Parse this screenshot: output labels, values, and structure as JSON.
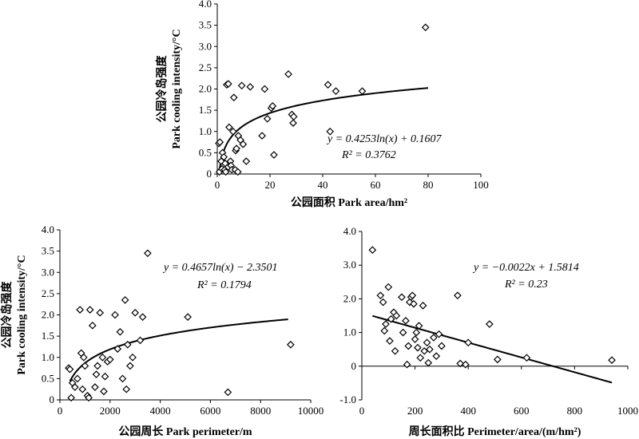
{
  "chart_data": [
    {
      "id": "area",
      "type": "scatter",
      "xlabel": "公园面积 Park area/hm²",
      "ylabel_cn": "公园冷岛强度",
      "ylabel_en": "Park cooling intensity/°C",
      "xlim": [
        0,
        100
      ],
      "ylim": [
        0,
        4
      ],
      "xticks": [
        "0",
        "20",
        "40",
        "60",
        "80",
        "100"
      ],
      "yticks": [
        "0",
        "0.5",
        "1.0",
        "1.5",
        "2.0",
        "2.5",
        "3.0",
        "3.5",
        "4.0"
      ],
      "equation": "y = 0.4253ln(x) + 0.1607",
      "r2": "R² = 0.3762",
      "fit": {
        "kind": "log",
        "a": 0.4253,
        "b": 0.1607,
        "xmin": 0.3,
        "xmax": 80
      },
      "points": [
        [
          0.6,
          0.72
        ],
        [
          1.0,
          0.75
        ],
        [
          0.8,
          0.05
        ],
        [
          1.5,
          0.3
        ],
        [
          1.8,
          0.12
        ],
        [
          2.0,
          0.5
        ],
        [
          2.5,
          0.4
        ],
        [
          2.8,
          0.1
        ],
        [
          3.0,
          0.25
        ],
        [
          3.2,
          0.05
        ],
        [
          3.6,
          2.1
        ],
        [
          4.2,
          2.12
        ],
        [
          4.5,
          1.1
        ],
        [
          5.0,
          0.3
        ],
        [
          5.2,
          0.2
        ],
        [
          5.5,
          0.1
        ],
        [
          6.0,
          1.0
        ],
        [
          6.3,
          1.8
        ],
        [
          6.8,
          0.1
        ],
        [
          7.0,
          0.55
        ],
        [
          7.3,
          0.6
        ],
        [
          7.8,
          0.05
        ],
        [
          8.0,
          0.9
        ],
        [
          8.8,
          0.8
        ],
        [
          9.3,
          2.08
        ],
        [
          9.8,
          0.7
        ],
        [
          11.0,
          0.3
        ],
        [
          12.5,
          2.05
        ],
        [
          17.0,
          0.9
        ],
        [
          18.0,
          2.0
        ],
        [
          19.0,
          1.3
        ],
        [
          20.5,
          1.55
        ],
        [
          21.0,
          1.6
        ],
        [
          21.5,
          0.45
        ],
        [
          27.0,
          2.35
        ],
        [
          28.3,
          1.4
        ],
        [
          28.8,
          1.2
        ],
        [
          29.0,
          1.35
        ],
        [
          42.0,
          2.1
        ],
        [
          42.8,
          1.0
        ],
        [
          45.0,
          1.95
        ],
        [
          55.0,
          1.95
        ],
        [
          79.0,
          3.45
        ]
      ]
    },
    {
      "id": "perimeter",
      "type": "scatter",
      "xlabel": "公园周长 Park perimeter/m",
      "ylabel_cn": "公园冷岛强度",
      "ylabel_en": "Park cooling intensity/°C",
      "xlim": [
        0,
        10000
      ],
      "ylim": [
        0,
        4
      ],
      "xticks": [
        "0",
        "2000",
        "4000",
        "6000",
        "8000",
        "10000"
      ],
      "yticks": [
        "0",
        "0.5",
        "1.0",
        "1.5",
        "2.0",
        "2.5",
        "3.0",
        "3.5",
        "4.0"
      ],
      "equation": "y = 0.4657ln(x) − 2.3501",
      "r2": "R² = 0.1794",
      "fit": {
        "kind": "log",
        "a": 0.4657,
        "b": -2.3501,
        "xmin": 400,
        "xmax": 9100
      },
      "points": [
        [
          350,
          0.75
        ],
        [
          400,
          0.72
        ],
        [
          450,
          0.05
        ],
        [
          500,
          0.4
        ],
        [
          600,
          0.3
        ],
        [
          700,
          0.5
        ],
        [
          800,
          2.12
        ],
        [
          850,
          1.1
        ],
        [
          900,
          0.25
        ],
        [
          950,
          1.0
        ],
        [
          1000,
          0.8
        ],
        [
          1100,
          0.1
        ],
        [
          1150,
          0.05
        ],
        [
          1200,
          2.12
        ],
        [
          1300,
          1.75
        ],
        [
          1400,
          0.3
        ],
        [
          1450,
          0.6
        ],
        [
          1500,
          0.8
        ],
        [
          1600,
          2.05
        ],
        [
          1700,
          1.0
        ],
        [
          1750,
          0.2
        ],
        [
          1800,
          0.55
        ],
        [
          1900,
          0.9
        ],
        [
          2000,
          0.95
        ],
        [
          2200,
          2.0
        ],
        [
          2300,
          1.2
        ],
        [
          2400,
          1.6
        ],
        [
          2500,
          0.5
        ],
        [
          2600,
          2.35
        ],
        [
          2650,
          0.25
        ],
        [
          2700,
          1.3
        ],
        [
          2800,
          0.8
        ],
        [
          2900,
          1.0
        ],
        [
          3000,
          2.05
        ],
        [
          3200,
          1.4
        ],
        [
          3300,
          1.95
        ],
        [
          3500,
          3.45
        ],
        [
          5100,
          1.95
        ],
        [
          6700,
          0.18
        ],
        [
          9200,
          1.3
        ]
      ]
    },
    {
      "id": "ratio",
      "type": "scatter",
      "xlabel": "周长面积比 Perimeter/area/(m/hm²)",
      "xlim": [
        0,
        1000
      ],
      "ylim": [
        -1,
        4
      ],
      "xticks": [
        "0",
        "200",
        "400",
        "600",
        "800",
        "1000"
      ],
      "yticks": [
        "-1.0",
        "0",
        "1.0",
        "2.0",
        "3.0",
        "4.0"
      ],
      "equation": "y = −0.0022x + 1.5814",
      "r2": "R² = 0.23",
      "fit": {
        "kind": "linear",
        "a": -0.0022,
        "b": 1.5814,
        "xmin": 40,
        "xmax": 940
      },
      "points": [
        [
          40,
          3.45
        ],
        [
          70,
          2.1
        ],
        [
          80,
          1.9
        ],
        [
          85,
          1.05
        ],
        [
          90,
          1.25
        ],
        [
          100,
          2.35
        ],
        [
          105,
          0.75
        ],
        [
          110,
          1.4
        ],
        [
          120,
          1.6
        ],
        [
          125,
          0.45
        ],
        [
          130,
          1.5
        ],
        [
          150,
          2.05
        ],
        [
          155,
          1.0
        ],
        [
          165,
          1.35
        ],
        [
          170,
          0.05
        ],
        [
          175,
          0.6
        ],
        [
          180,
          1.9
        ],
        [
          185,
          2.05
        ],
        [
          190,
          2.1
        ],
        [
          195,
          1.85
        ],
        [
          200,
          0.8
        ],
        [
          205,
          1.0
        ],
        [
          210,
          0.55
        ],
        [
          215,
          1.2
        ],
        [
          220,
          0.25
        ],
        [
          230,
          1.8
        ],
        [
          235,
          0.45
        ],
        [
          245,
          0.7
        ],
        [
          250,
          0.1
        ],
        [
          255,
          0.5
        ],
        [
          270,
          0.85
        ],
        [
          280,
          0.3
        ],
        [
          290,
          0.95
        ],
        [
          300,
          0.6
        ],
        [
          360,
          2.1
        ],
        [
          370,
          0.08
        ],
        [
          390,
          0.05
        ],
        [
          400,
          0.7
        ],
        [
          480,
          1.25
        ],
        [
          510,
          0.2
        ],
        [
          620,
          0.25
        ],
        [
          940,
          0.18
        ]
      ]
    }
  ]
}
